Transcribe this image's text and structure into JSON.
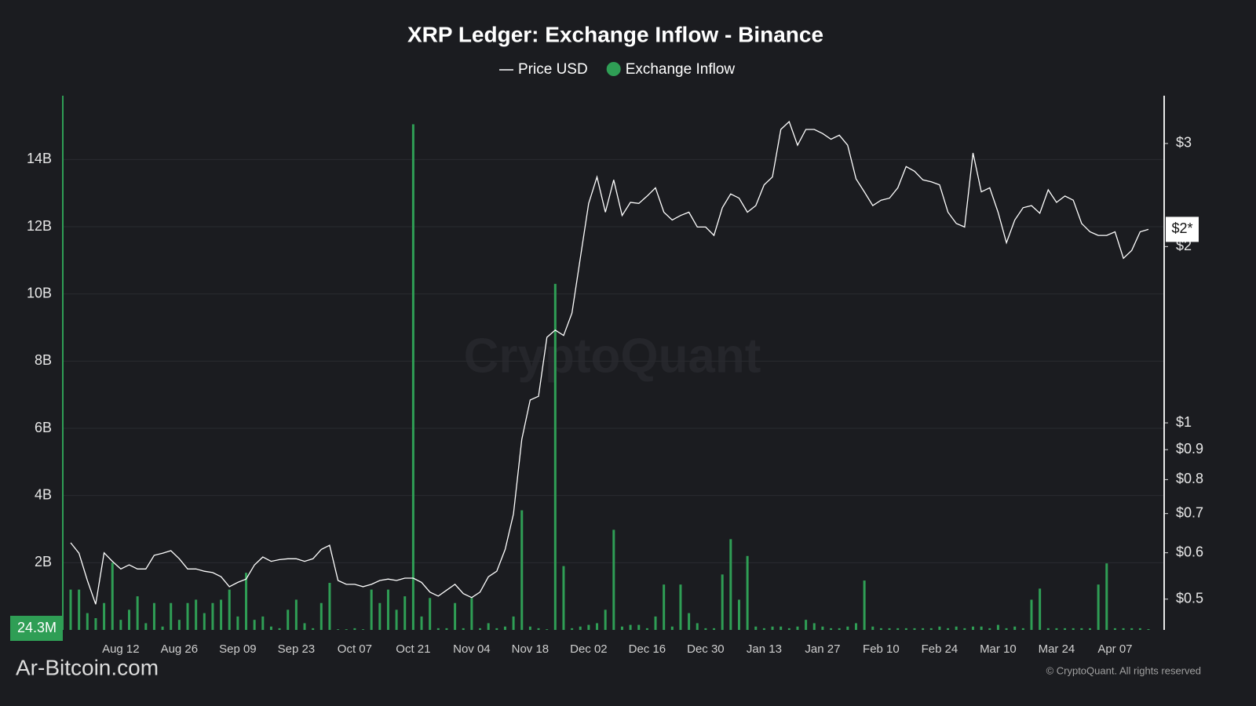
{
  "chart_data": {
    "type": "bar-line",
    "title": "XRP Ledger: Exchange Inflow - Binance",
    "watermark": "CryptoQuant",
    "source_site": "Ar-Bitcoin.com",
    "copyright": "© CryptoQuant. All rights reserved",
    "last_value_label": "24.3M",
    "last_price_label": "$2*",
    "categories": [
      null,
      null,
      null,
      null,
      null,
      null,
      "Aug 12",
      null,
      null,
      null,
      null,
      null,
      null,
      "Aug 26",
      null,
      null,
      null,
      null,
      null,
      null,
      "Sep 09",
      null,
      null,
      null,
      null,
      null,
      null,
      "Sep 23",
      null,
      null,
      null,
      null,
      null,
      null,
      "Oct 07",
      null,
      null,
      null,
      null,
      null,
      null,
      "Oct 21",
      null,
      null,
      null,
      null,
      null,
      null,
      "Nov 04",
      null,
      null,
      null,
      null,
      null,
      null,
      "Nov 18",
      null,
      null,
      null,
      null,
      null,
      null,
      "Dec 02",
      null,
      null,
      null,
      null,
      null,
      null,
      "Dec 16",
      null,
      null,
      null,
      null,
      null,
      null,
      "Dec 30",
      null,
      null,
      null,
      null,
      null,
      null,
      "Jan 13",
      null,
      null,
      null,
      null,
      null,
      null,
      "Jan 27",
      null,
      null,
      null,
      null,
      null,
      null,
      "Feb 10",
      null,
      null,
      null,
      null,
      null,
      null,
      "Feb 24",
      null,
      null,
      null,
      null,
      null,
      null,
      "Mar 10",
      null,
      null,
      null,
      null,
      null,
      null,
      "Mar 24",
      null,
      null,
      null,
      null,
      null,
      null,
      "Apr 07",
      null,
      null,
      null,
      null
    ],
    "series": [
      {
        "name": "Price USD",
        "type": "line",
        "axis": "y2",
        "color": "#ffffff",
        "values": [
          0.624,
          0.599,
          0.538,
          0.49,
          0.6,
          0.58,
          0.563,
          0.572,
          0.563,
          0.563,
          0.594,
          0.599,
          0.605,
          0.586,
          0.563,
          0.563,
          0.558,
          0.555,
          0.546,
          0.525,
          0.534,
          0.541,
          0.572,
          0.59,
          0.58,
          0.584,
          0.586,
          0.586,
          0.58,
          0.586,
          0.608,
          0.618,
          0.538,
          0.53,
          0.53,
          0.525,
          0.53,
          0.538,
          0.541,
          0.538,
          0.543,
          0.543,
          0.534,
          0.514,
          0.506,
          0.518,
          0.53,
          0.511,
          0.503,
          0.514,
          0.546,
          0.558,
          0.608,
          0.699,
          0.937,
          1.094,
          1.11,
          1.4,
          1.44,
          1.41,
          1.54,
          1.91,
          2.37,
          2.63,
          2.29,
          2.6,
          2.26,
          2.38,
          2.37,
          2.44,
          2.52,
          2.29,
          2.22,
          2.26,
          2.29,
          2.16,
          2.16,
          2.09,
          2.33,
          2.46,
          2.42,
          2.29,
          2.35,
          2.55,
          2.63,
          3.17,
          3.27,
          2.98,
          3.17,
          3.17,
          3.12,
          3.05,
          3.1,
          2.98,
          2.61,
          2.48,
          2.35,
          2.4,
          2.42,
          2.52,
          2.74,
          2.69,
          2.6,
          2.58,
          2.55,
          2.29,
          2.19,
          2.16,
          2.89,
          2.48,
          2.52,
          2.29,
          2.03,
          2.22,
          2.33,
          2.35,
          2.28,
          2.5,
          2.38,
          2.44,
          2.4,
          2.19,
          2.12,
          2.09,
          2.09,
          2.12,
          1.91,
          1.97,
          2.12,
          2.14
        ]
      },
      {
        "name": "Exchange Inflow",
        "type": "bar",
        "axis": "y",
        "color": "#2f9e55",
        "values": [
          1.2,
          1.2,
          0.5,
          0.35,
          0.8,
          2.0,
          0.3,
          0.6,
          1.0,
          0.2,
          0.8,
          0.1,
          0.8,
          0.3,
          0.8,
          0.9,
          0.5,
          0.8,
          0.9,
          1.2,
          0.4,
          1.7,
          0.3,
          0.4,
          0.1,
          0.05,
          0.6,
          0.9,
          0.2,
          0.05,
          0.8,
          1.4,
          0.02,
          0.02,
          0.05,
          0.02,
          1.2,
          0.8,
          1.2,
          0.6,
          1.0,
          15.05,
          0.4,
          0.95,
          0.05,
          0.05,
          0.8,
          0.05,
          0.95,
          0.05,
          0.2,
          0.05,
          0.1,
          0.4,
          3.56,
          0.1,
          0.05,
          0.02,
          10.3,
          1.9,
          0.05,
          0.1,
          0.15,
          0.2,
          0.6,
          2.98,
          0.1,
          0.15,
          0.15,
          0.05,
          0.4,
          1.35,
          0.1,
          1.35,
          0.5,
          0.2,
          0.05,
          0.05,
          1.65,
          2.7,
          0.9,
          2.2,
          0.1,
          0.05,
          0.1,
          0.1,
          0.05,
          0.1,
          0.3,
          0.2,
          0.1,
          0.05,
          0.05,
          0.1,
          0.2,
          1.47,
          0.1,
          0.05,
          0.05,
          0.05,
          0.05,
          0.05,
          0.05,
          0.05,
          0.1,
          0.05,
          0.1,
          0.05,
          0.1,
          0.1,
          0.05,
          0.15,
          0.05,
          0.1,
          0.05,
          0.9,
          1.23,
          0.05,
          0.05,
          0.05,
          0.05,
          0.05,
          0.05,
          1.35,
          1.98,
          0.05,
          0.05,
          0.05,
          0.05,
          0.0243
        ]
      }
    ],
    "ylim": [
      0,
      15.9
    ],
    "yticks": [
      {
        "value": 2,
        "label": "2B"
      },
      {
        "value": 4,
        "label": "4B"
      },
      {
        "value": 6,
        "label": "6B"
      },
      {
        "value": 8,
        "label": "8B"
      },
      {
        "value": 10,
        "label": "10B"
      },
      {
        "value": 12,
        "label": "12B"
      },
      {
        "value": 14,
        "label": "14B"
      }
    ],
    "y2lim": [
      0.443,
      3.62
    ],
    "y2_log": true,
    "y2ticks": [
      {
        "value": 0.5,
        "label": "$0.5"
      },
      {
        "value": 0.6,
        "label": "$0.6"
      },
      {
        "value": 0.7,
        "label": "$0.7"
      },
      {
        "value": 0.8,
        "label": "$0.8"
      },
      {
        "value": 0.9,
        "label": "$0.9"
      },
      {
        "value": 1,
        "label": "$1"
      },
      {
        "value": 2,
        "label": "$2"
      },
      {
        "value": 3,
        "label": "$3"
      }
    ],
    "grid": true,
    "legend": "top"
  }
}
